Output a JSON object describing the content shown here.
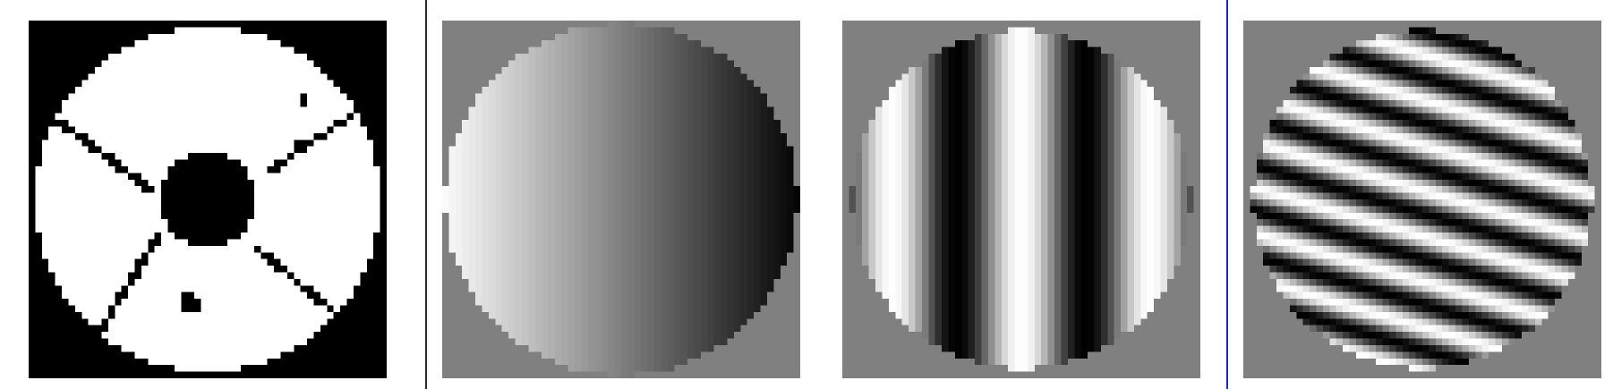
{
  "colors": {
    "background": "#ffffff",
    "divider_left": "#2b2b2b",
    "divider_right": "#1f25d0",
    "aperture_background": "#000000",
    "aperture_foreground": "#ffffff",
    "outside_gray": "#808080"
  },
  "panels": [
    {
      "name": "pupil-aperture-mask",
      "kind": "binary mask"
    },
    {
      "name": "linear-gradient-disk",
      "kind": "grayscale"
    },
    {
      "name": "vertical-fringes-disk",
      "kind": "grayscale"
    },
    {
      "name": "diagonal-fringes-disk",
      "kind": "grayscale"
    }
  ]
}
